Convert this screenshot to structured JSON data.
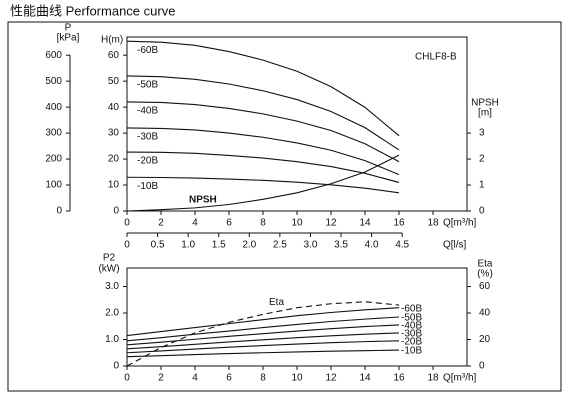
{
  "title": "性能曲线  Performance curve",
  "chart_data": [
    {
      "type": "line",
      "annotation": "CHLF8-B",
      "x": [
        0,
        2,
        4,
        6,
        8,
        10,
        12,
        14,
        16
      ],
      "xlim": [
        0,
        20
      ],
      "xticks": [
        0,
        2,
        4,
        6,
        8,
        10,
        12,
        14,
        16,
        18
      ],
      "xlabel": "Q[m³/h]",
      "x2lim": [
        0,
        5.56
      ],
      "x2ticks": [
        0,
        0.5,
        {
          "value": 1,
          "label": "1.0"
        },
        1.5,
        {
          "value": 2,
          "label": "2.0"
        },
        2.5,
        {
          "value": 3,
          "label": "3.0"
        },
        3.5,
        {
          "value": 4,
          "label": "4.0"
        },
        4.5
      ],
      "x2label": "Q[l/s]",
      "ylim": [
        0,
        67
      ],
      "yticks": [
        0,
        10,
        20,
        30,
        40,
        50,
        60
      ],
      "ylabel": "H(m)",
      "y_outer_lim": [
        0,
        670
      ],
      "y_outer_ticks": [
        0,
        100,
        200,
        300,
        400,
        500,
        600
      ],
      "y_outer_label": [
        "P",
        "[kPa]"
      ],
      "y2lim": [
        0,
        6.7
      ],
      "y2ticks": [
        0,
        1,
        2,
        3
      ],
      "y2label": [
        "NPSH",
        "[m]"
      ],
      "series": [
        {
          "name": "-60B",
          "color": "#111111",
          "values": [
            65.4,
            65.0,
            63.8,
            61.4,
            58.1,
            53.8,
            47.9,
            39.9,
            29.0
          ]
        },
        {
          "name": "-50B",
          "color": "#111111",
          "values": [
            52,
            51.7,
            50.7,
            48.9,
            46.3,
            42.9,
            38.3,
            32.1,
            23.5
          ]
        },
        {
          "name": "-40B",
          "color": "#111111",
          "values": [
            42,
            41.8,
            41,
            39.5,
            37.4,
            34.6,
            31,
            25.9,
            19
          ]
        },
        {
          "name": "-30B",
          "color": "#111111",
          "values": [
            32,
            31.8,
            31.2,
            30,
            28.4,
            26.2,
            23.4,
            19.4,
            14
          ]
        },
        {
          "name": "-20B",
          "color": "#111111",
          "values": [
            22.7,
            22.6,
            22.2,
            21.4,
            20.4,
            19,
            17.1,
            14.5,
            11
          ]
        },
        {
          "name": "-10B",
          "color": "#111111",
          "values": [
            13,
            12.9,
            12.7,
            12.3,
            11.8,
            11.1,
            10.1,
            8.8,
            7
          ]
        },
        {
          "name": "NPSH",
          "color": "#111111",
          "axis": "y2",
          "values": [
            0,
            0.05,
            0.12,
            0.25,
            0.45,
            0.7,
            1.05,
            1.5,
            2.15
          ]
        }
      ]
    },
    {
      "type": "line",
      "x": [
        0,
        2,
        4,
        6,
        8,
        10,
        12,
        14,
        16
      ],
      "xlim": [
        0,
        20
      ],
      "xticks": [
        0,
        2,
        4,
        6,
        8,
        10,
        12,
        14,
        16,
        18
      ],
      "xlabel": "Q[m³/h]",
      "ylim": [
        0,
        3.7
      ],
      "yticks": [
        0,
        {
          "value": 1,
          "label": "1.0"
        },
        {
          "value": 2,
          "label": "2.0"
        },
        {
          "value": 3,
          "label": "3.0"
        }
      ],
      "ylabel": [
        "P2",
        "(kW)"
      ],
      "y2lim": [
        0,
        74
      ],
      "y2ticks": [
        0,
        20,
        40,
        60
      ],
      "y2label": [
        "Eta",
        "(%)"
      ],
      "series": [
        {
          "name": "-60B",
          "color": "#111111",
          "values": [
            1.15,
            1.3,
            1.45,
            1.6,
            1.75,
            1.9,
            2.02,
            2.12,
            2.2
          ]
        },
        {
          "name": "-50B",
          "color": "#111111",
          "values": [
            0.95,
            1.07,
            1.2,
            1.32,
            1.45,
            1.57,
            1.68,
            1.77,
            1.85
          ]
        },
        {
          "name": "-40B",
          "color": "#111111",
          "values": [
            0.8,
            0.9,
            1.01,
            1.12,
            1.22,
            1.32,
            1.41,
            1.49,
            1.55
          ]
        },
        {
          "name": "-30B",
          "color": "#111111",
          "values": [
            0.65,
            0.73,
            0.82,
            0.91,
            0.99,
            1.07,
            1.14,
            1.2,
            1.25
          ]
        },
        {
          "name": "-20B",
          "color": "#111111",
          "values": [
            0.5,
            0.57,
            0.64,
            0.71,
            0.77,
            0.83,
            0.88,
            0.92,
            0.95
          ]
        },
        {
          "name": "-10B",
          "color": "#111111",
          "values": [
            0.35,
            0.39,
            0.43,
            0.47,
            0.5,
            0.53,
            0.56,
            0.58,
            0.6
          ]
        },
        {
          "name": "Eta",
          "color": "#111111",
          "axis": "y2",
          "dashed": true,
          "values": [
            0,
            14,
            25,
            33,
            39,
            44,
            47,
            48.5,
            46
          ]
        }
      ]
    }
  ]
}
